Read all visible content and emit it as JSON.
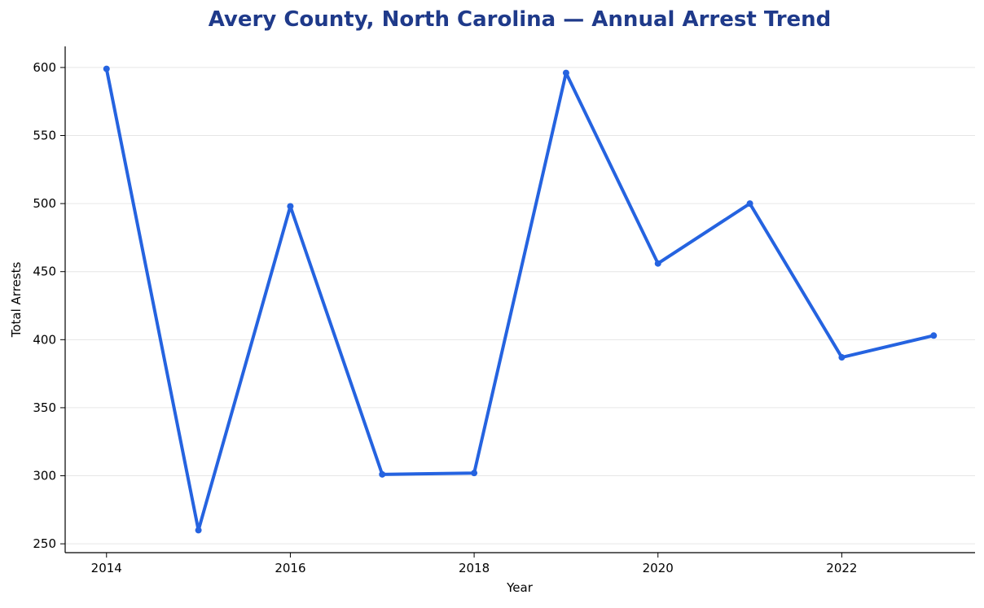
{
  "chart_data": {
    "type": "line",
    "title": "Avery County, North Carolina — Annual Arrest Trend",
    "xlabel": "Year",
    "ylabel": "Total Arrests",
    "x": [
      2014,
      2015,
      2016,
      2017,
      2018,
      2019,
      2020,
      2021,
      2022,
      2023
    ],
    "series": [
      {
        "values": [
          599,
          260,
          498,
          301,
          302,
          596,
          456,
          500,
          387,
          403
        ]
      }
    ],
    "xlim": [
      2013.55,
      2023.45
    ],
    "ylim": [
      243.5,
      615.5
    ],
    "xticks": [
      2014,
      2016,
      2018,
      2020,
      2022
    ],
    "yticks": [
      250,
      300,
      350,
      400,
      450,
      500,
      550,
      600
    ],
    "grid": "horizontal",
    "legend": "none",
    "colors": {
      "line": "#2563e0",
      "title": "#1f3a8a",
      "axis": "#000000",
      "grid": "#e6e6e6"
    }
  }
}
